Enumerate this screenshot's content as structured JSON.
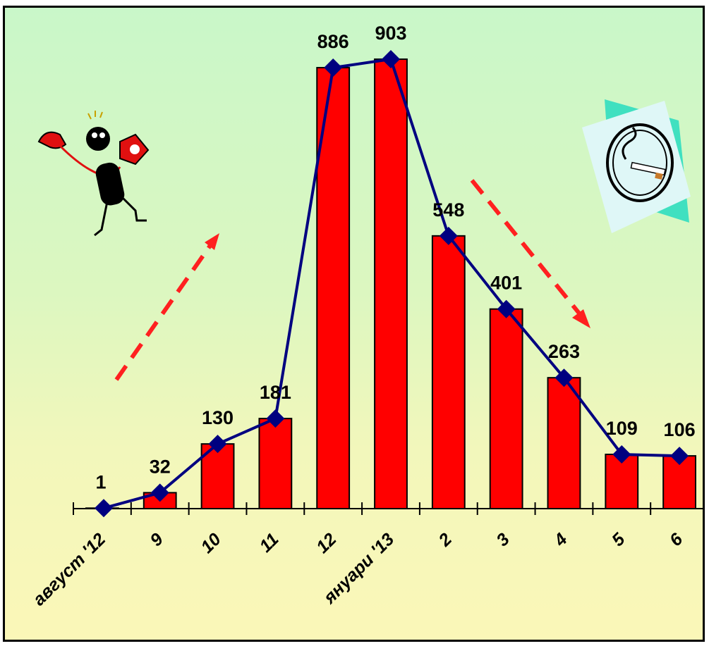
{
  "chart_data": {
    "type": "bar",
    "categories": [
      "август '12",
      "9",
      "10",
      "11",
      "12",
      "януари '13",
      "2",
      "3",
      "4",
      "5",
      "6"
    ],
    "values": [
      1,
      32,
      130,
      181,
      886,
      903,
      548,
      401,
      263,
      109,
      106
    ],
    "line_series": {
      "values": [
        1,
        32,
        130,
        181,
        886,
        903,
        548,
        401,
        263,
        109,
        106
      ]
    },
    "data_labels": [
      "1",
      "32",
      "130",
      "181",
      "886",
      "903",
      "548",
      "401",
      "263",
      "109",
      "106"
    ],
    "ylim": [
      0,
      1000
    ],
    "grid": false,
    "colors": {
      "bar": "#ff0000",
      "bar_outline": "#000000",
      "line": "#000080",
      "marker": "#000080",
      "arrow": "#ff0000"
    }
  },
  "decorations": {
    "left_clipart": "person-with-telephone-icon",
    "right_clipart": "cigarette-in-ashtray-icon",
    "up_arrow": "dashed-arrow-up-icon",
    "down_arrow": "dashed-arrow-down-icon"
  }
}
